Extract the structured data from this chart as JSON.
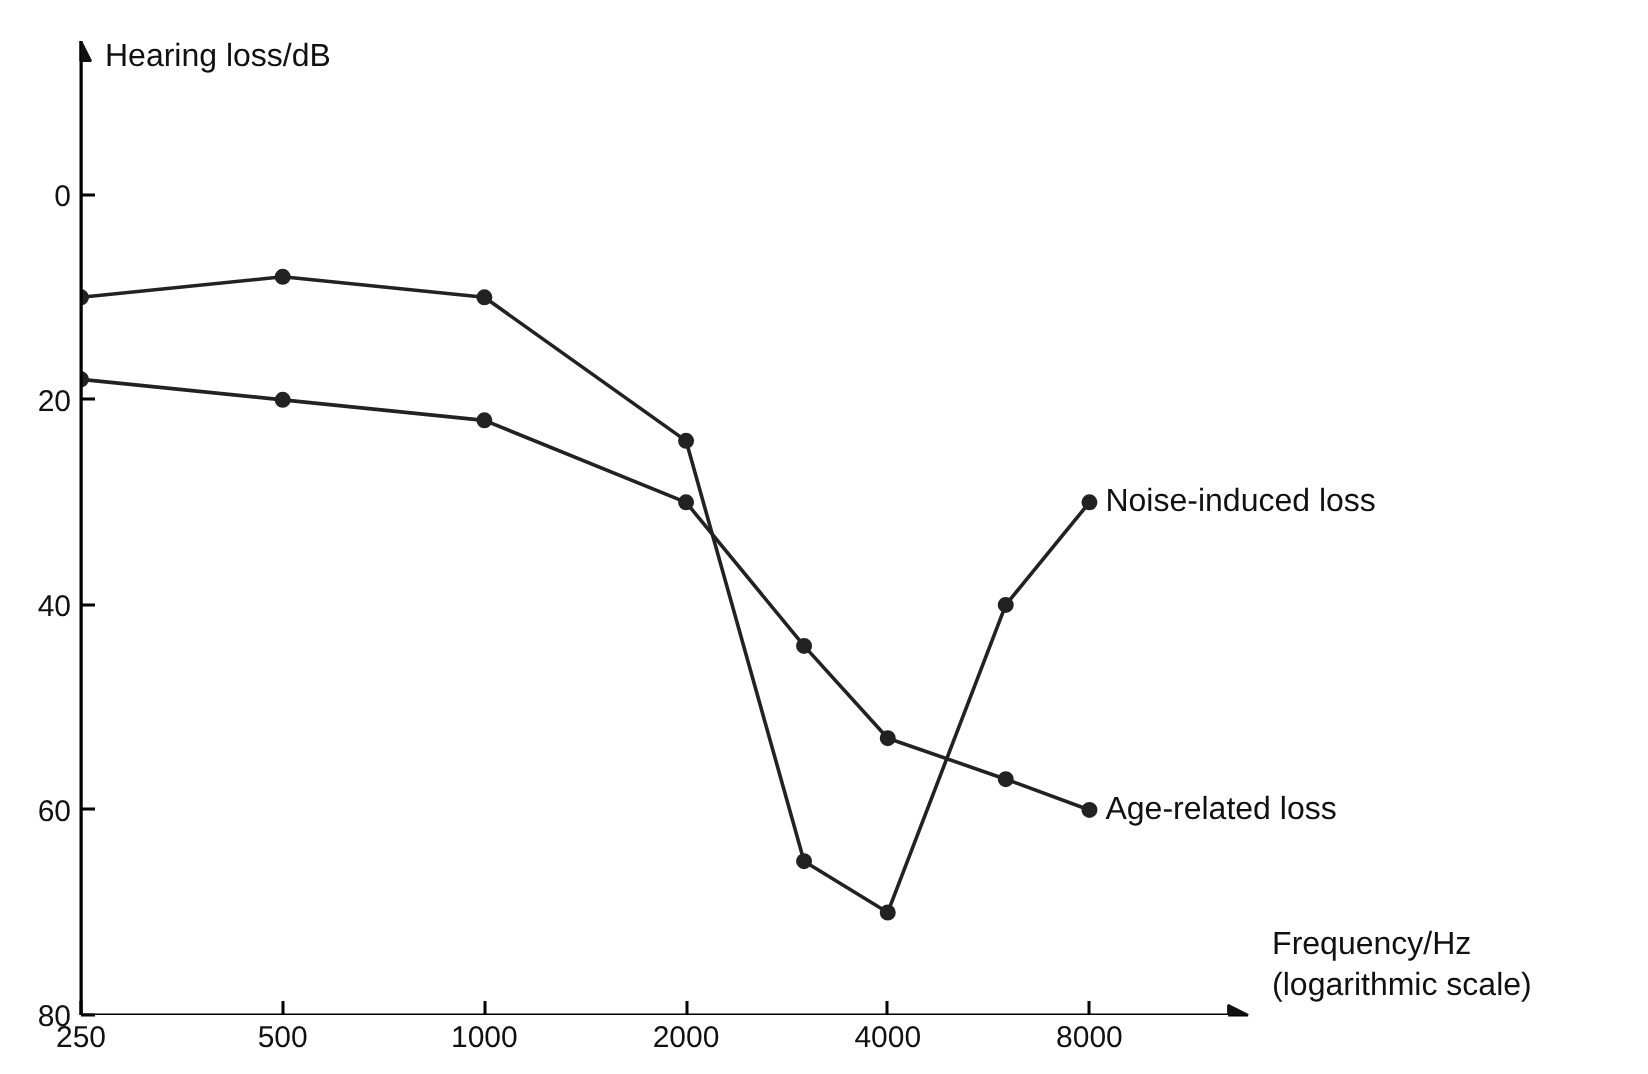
{
  "chart_data": {
    "type": "line",
    "ylabel": "Hearing loss/dB",
    "xlabel": "Frequency/Hz\n(logarithmic scale)",
    "x": [
      250,
      500,
      1000,
      2000,
      3000,
      4000,
      6000,
      8000
    ],
    "series": [
      {
        "name": "Noise-induced loss",
        "color": "#222222",
        "values": [
          10,
          8,
          10,
          24,
          65,
          70,
          40,
          30
        ]
      },
      {
        "name": "Age-related loss",
        "color": "#222222",
        "values": [
          18,
          20,
          22,
          30,
          44,
          53,
          57,
          60
        ]
      }
    ],
    "log": "x",
    "xlim": [
      250,
      13800
    ],
    "ylim": [
      80,
      -15
    ],
    "xticks": [
      250,
      500,
      1000,
      2000,
      4000,
      8000
    ],
    "yticks": [
      0,
      20,
      40,
      60,
      80
    ],
    "marker": "circle",
    "line_style": "solid",
    "grid": false,
    "legend": false
  }
}
